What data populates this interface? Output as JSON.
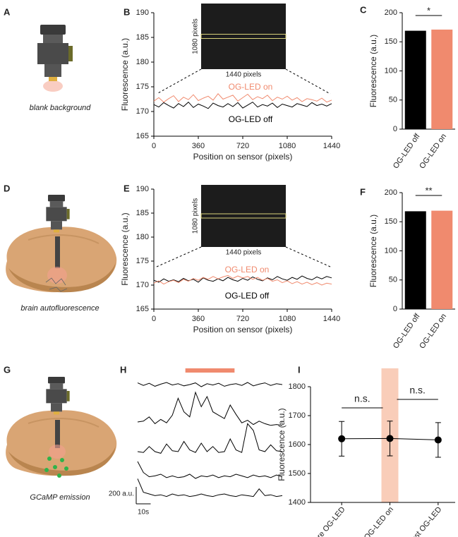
{
  "figure_panels": [
    {
      "letter": "A",
      "caption": "blank background"
    },
    {
      "letter": "D",
      "caption": "brain autofluorescence"
    },
    {
      "letter": "G",
      "caption": "GCaMP emission"
    }
  ],
  "chart_data": [
    {
      "type": "line",
      "panel": "B",
      "xlabel": "Position on sensor (pixels)",
      "ylabel": "Fluorescence (a.u.)",
      "xlim": [
        0,
        1440
      ],
      "xticks": [
        0,
        360,
        720,
        1080,
        1440
      ],
      "ylim": [
        165,
        190
      ],
      "yticks": [
        165,
        170,
        175,
        180,
        185,
        190
      ],
      "inset": {
        "height_label": "1080 pixels",
        "width_label": "1440 pixels"
      },
      "x": [
        0,
        40,
        80,
        120,
        160,
        200,
        240,
        280,
        320,
        360,
        400,
        440,
        480,
        520,
        560,
        600,
        640,
        680,
        720,
        760,
        800,
        840,
        880,
        920,
        960,
        1000,
        1040,
        1080,
        1120,
        1160,
        1200,
        1240,
        1280,
        1320,
        1360,
        1400,
        1440
      ],
      "series": [
        {
          "name": "OG-LED on",
          "color": "#f08a6e",
          "values": [
            172.1,
            172.8,
            171.9,
            172.6,
            173.2,
            172.0,
            172.9,
            172.4,
            173.4,
            172.2,
            172.7,
            173.1,
            172.3,
            173.6,
            172.5,
            172.9,
            173.3,
            172.1,
            172.8,
            173.5,
            172.4,
            173.0,
            172.6,
            173.3,
            172.2,
            172.9,
            172.5,
            173.1,
            172.3,
            172.8,
            172.0,
            172.6,
            172.4,
            172.1,
            172.7,
            171.9,
            172.3
          ]
        },
        {
          "name": "OG-LED off",
          "color": "#000000",
          "values": [
            171.4,
            170.9,
            171.8,
            171.2,
            170.7,
            171.6,
            171.0,
            171.9,
            170.8,
            171.5,
            171.1,
            170.6,
            171.7,
            171.2,
            170.9,
            171.6,
            171.0,
            171.8,
            170.7,
            171.3,
            171.9,
            170.9,
            171.4,
            171.1,
            171.7,
            170.8,
            171.5,
            171.2,
            170.9,
            171.6,
            171.3,
            171.0,
            171.8,
            171.2,
            171.5,
            171.1,
            171.6
          ]
        }
      ]
    },
    {
      "type": "bar",
      "panel": "C",
      "ylabel": "Fluorescence (a.u.)",
      "categories": [
        "OG-LED off",
        "OG-LED on"
      ],
      "values": [
        169,
        171
      ],
      "colors": [
        "#000000",
        "#f08a6e"
      ],
      "ylim": [
        0,
        200
      ],
      "yticks": [
        0,
        50,
        100,
        150,
        200
      ],
      "significance": "*"
    },
    {
      "type": "line",
      "panel": "E",
      "xlabel": "Position on sensor (pixels)",
      "ylabel": "Fluorescence (a.u.)",
      "xlim": [
        0,
        1440
      ],
      "xticks": [
        0,
        360,
        720,
        1080,
        1440
      ],
      "ylim": [
        165,
        190
      ],
      "yticks": [
        165,
        170,
        175,
        180,
        185,
        190
      ],
      "inset": {
        "height_label": "1080 pixels",
        "width_label": "1440 pixels"
      },
      "x": [
        0,
        40,
        80,
        120,
        160,
        200,
        240,
        280,
        320,
        360,
        400,
        440,
        480,
        520,
        560,
        600,
        640,
        680,
        720,
        760,
        800,
        840,
        880,
        920,
        960,
        1000,
        1040,
        1080,
        1120,
        1160,
        1200,
        1240,
        1280,
        1320,
        1360,
        1400,
        1440
      ],
      "series": [
        {
          "name": "OG-LED on",
          "color": "#f08a6e",
          "values": [
            170.4,
            170.9,
            170.2,
            170.7,
            171.0,
            170.5,
            171.2,
            170.8,
            171.4,
            171.0,
            171.6,
            171.2,
            171.8,
            171.3,
            171.7,
            172.0,
            171.4,
            171.9,
            171.5,
            171.8,
            171.2,
            171.6,
            171.0,
            171.4,
            170.8,
            171.1,
            170.5,
            170.9,
            170.3,
            170.7,
            170.2,
            170.6,
            170.1,
            170.5,
            170.0,
            170.4,
            170.2
          ]
        },
        {
          "name": "OG-LED off",
          "color": "#000000",
          "values": [
            171.0,
            170.6,
            171.3,
            170.8,
            171.1,
            170.7,
            171.4,
            170.9,
            171.2,
            170.6,
            171.5,
            171.0,
            170.8,
            171.3,
            170.9,
            171.6,
            171.1,
            170.8,
            171.4,
            171.0,
            171.7,
            171.2,
            170.9,
            171.5,
            171.1,
            171.8,
            171.3,
            171.0,
            171.6,
            171.2,
            171.9,
            171.4,
            171.1,
            171.7,
            171.3,
            171.8,
            171.5
          ]
        }
      ]
    },
    {
      "type": "bar",
      "panel": "F",
      "ylabel": "Fluorescence (a.u.)",
      "categories": [
        "OG-LED off",
        "OG-LED on"
      ],
      "values": [
        168,
        169
      ],
      "colors": [
        "#000000",
        "#f08a6e"
      ],
      "ylim": [
        0,
        200
      ],
      "yticks": [
        0,
        50,
        100,
        150,
        200
      ],
      "significance": "**"
    },
    {
      "type": "traces",
      "panel": "H",
      "color": "#000000",
      "x": [
        0,
        4,
        8,
        12,
        16,
        20,
        24,
        28,
        32,
        36,
        40,
        44,
        48,
        52,
        56,
        60,
        64,
        68,
        72,
        76,
        80,
        84,
        88,
        92,
        96,
        100
      ],
      "series": [
        {
          "values": [
            20,
            -10,
            15,
            -20,
            5,
            25,
            -5,
            10,
            -15,
            0,
            20,
            -25,
            10,
            -5,
            15,
            -20,
            0,
            10,
            -10,
            25,
            -15,
            5,
            20,
            -10,
            10,
            0
          ]
        },
        {
          "values": [
            0,
            10,
            60,
            -20,
            30,
            -10,
            80,
            280,
            120,
            60,
            350,
            180,
            300,
            120,
            80,
            40,
            200,
            90,
            -10,
            20,
            -30,
            10,
            -20,
            -40,
            -30,
            -40
          ]
        },
        {
          "values": [
            0,
            -10,
            60,
            0,
            -20,
            90,
            10,
            0,
            120,
            20,
            -10,
            100,
            0,
            60,
            -10,
            0,
            150,
            20,
            -10,
            330,
            250,
            20,
            0,
            80,
            10,
            0
          ]
        },
        {
          "values": [
            150,
            20,
            -30,
            -20,
            0,
            -40,
            -20,
            -40,
            -30,
            0,
            -50,
            -20,
            -30,
            -10,
            -40,
            -20,
            -30,
            0,
            -20,
            -40,
            -10,
            -30,
            -20,
            -40,
            -10,
            -30
          ]
        },
        {
          "values": [
            180,
            20,
            0,
            -20,
            -10,
            -30,
            0,
            -20,
            -10,
            -30,
            -20,
            0,
            -20,
            -30,
            -10,
            0,
            -20,
            -30,
            -10,
            -20,
            -30,
            60,
            -20,
            -10,
            -30,
            -20
          ]
        }
      ],
      "stimulus": [
        33,
        67
      ],
      "stimulus_color": "#f08a6e",
      "scale_bar": {
        "y": {
          "value": 200,
          "label": "200 a.u."
        },
        "x": {
          "value": 10,
          "label": "10s"
        }
      }
    },
    {
      "type": "errorbar",
      "panel": "I",
      "ylabel": "Fluorescence (a.u.)",
      "categories": [
        "pre OG-LED",
        "OG-LED on",
        "post OG-LED"
      ],
      "values": [
        1620,
        1621,
        1616
      ],
      "errors": [
        60,
        60,
        60
      ],
      "ylim": [
        1400,
        1800
      ],
      "yticks": [
        1400,
        1500,
        1600,
        1700,
        1800
      ],
      "highlight_category": 1,
      "highlight_color": "#f9cdb9",
      "annotations": [
        "n.s.",
        "n.s."
      ]
    }
  ]
}
